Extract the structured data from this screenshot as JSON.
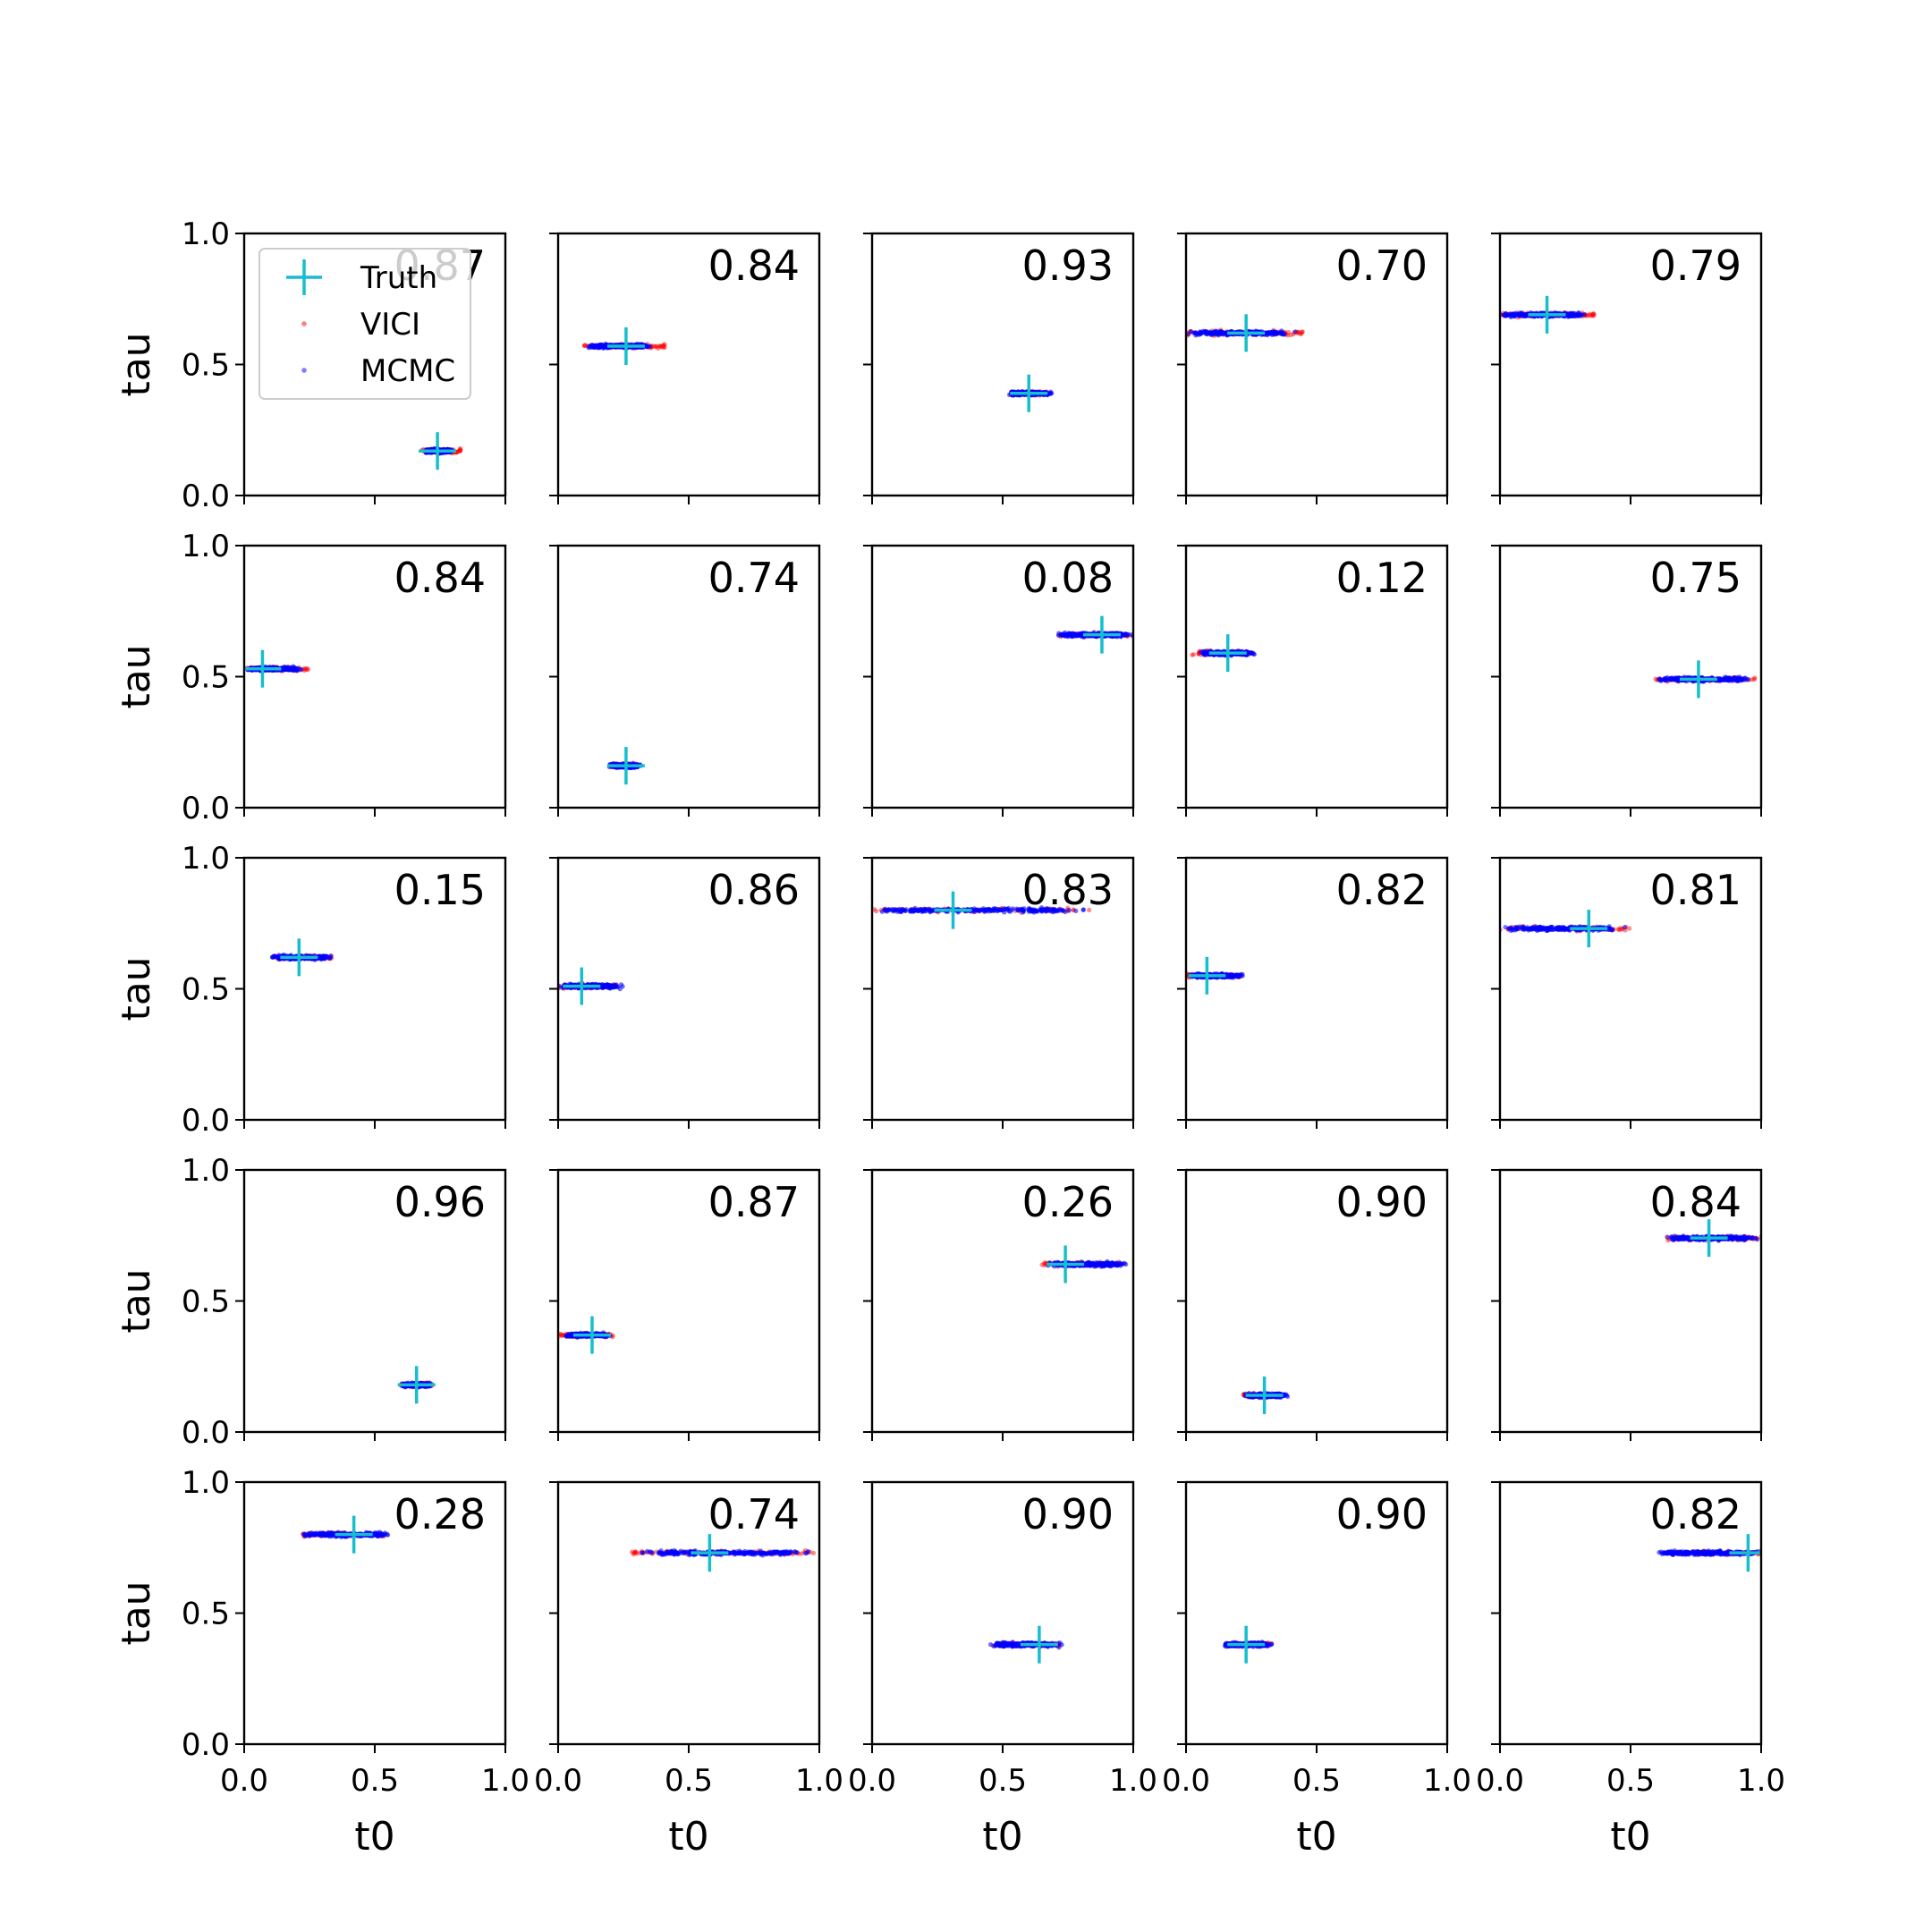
{
  "chart_data": {
    "type": "scatter",
    "layout": "5x5 grid of scatter panels",
    "xlabel": "t0",
    "ylabel": "tau",
    "xlim": [
      0,
      1
    ],
    "ylim": [
      0,
      1
    ],
    "x_ticks": [
      "0.0",
      "0.5",
      "1.0"
    ],
    "y_ticks": [
      "0.0",
      "0.5",
      "1.0"
    ],
    "grid": false,
    "legend": {
      "placement": "upper-left of first panel",
      "entries": [
        {
          "label": "Truth",
          "marker": "plus",
          "color": "#17becf"
        },
        {
          "label": "VICI",
          "marker": "dot",
          "color": "#ff0000"
        },
        {
          "label": "MCMC",
          "marker": "dot",
          "color": "#0000ff"
        }
      ]
    },
    "colors": {
      "truth": "#17becf",
      "vici": "#ff0000",
      "mcmc": "#0000ff"
    },
    "panels": [
      {
        "label": "0.87",
        "truth": [
          0.74,
          0.17
        ],
        "mcmc_t0": [
          0.69,
          0.8
        ],
        "vici_t0": [
          0.68,
          0.83
        ],
        "tau": 0.17
      },
      {
        "label": "0.84",
        "truth": [
          0.26,
          0.57
        ],
        "mcmc_t0": [
          0.1,
          0.36
        ],
        "vici_t0": [
          0.1,
          0.41
        ],
        "tau": 0.57
      },
      {
        "label": "0.93",
        "truth": [
          0.6,
          0.39
        ],
        "mcmc_t0": [
          0.52,
          0.69
        ],
        "vici_t0": [
          0.53,
          0.67
        ],
        "tau": 0.39
      },
      {
        "label": "0.70",
        "truth": [
          0.23,
          0.62
        ],
        "mcmc_t0": [
          0.0,
          0.42
        ],
        "vici_t0": [
          0.0,
          0.46
        ],
        "tau": 0.62
      },
      {
        "label": "0.79",
        "truth": [
          0.18,
          0.69
        ],
        "mcmc_t0": [
          0.0,
          0.33
        ],
        "vici_t0": [
          0.0,
          0.36
        ],
        "tau": 0.69
      },
      {
        "label": "0.84",
        "truth": [
          0.07,
          0.53
        ],
        "mcmc_t0": [
          0.0,
          0.22
        ],
        "vici_t0": [
          0.0,
          0.25
        ],
        "tau": 0.53
      },
      {
        "label": "0.74",
        "truth": [
          0.26,
          0.16
        ],
        "mcmc_t0": [
          0.19,
          0.32
        ],
        "vici_t0": [
          0.2,
          0.3
        ],
        "tau": 0.16
      },
      {
        "label": "0.08",
        "truth": [
          0.88,
          0.66
        ],
        "mcmc_t0": [
          0.7,
          1.0
        ],
        "vici_t0": [
          0.7,
          0.98
        ],
        "tau": 0.66
      },
      {
        "label": "0.12",
        "truth": [
          0.16,
          0.59
        ],
        "mcmc_t0": [
          0.05,
          0.27
        ],
        "vici_t0": [
          0.02,
          0.25
        ],
        "tau": 0.59
      },
      {
        "label": "0.75",
        "truth": [
          0.76,
          0.49
        ],
        "mcmc_t0": [
          0.6,
          0.96
        ],
        "vici_t0": [
          0.58,
          0.98
        ],
        "tau": 0.49
      },
      {
        "label": "0.15",
        "truth": [
          0.21,
          0.62
        ],
        "mcmc_t0": [
          0.1,
          0.34
        ],
        "vici_t0": [
          0.11,
          0.34
        ],
        "tau": 0.62
      },
      {
        "label": "0.86",
        "truth": [
          0.09,
          0.51
        ],
        "mcmc_t0": [
          0.0,
          0.25
        ],
        "vici_t0": [
          0.0,
          0.23
        ],
        "tau": 0.51
      },
      {
        "label": "0.83",
        "truth": [
          0.31,
          0.8
        ],
        "mcmc_t0": [
          0.0,
          0.82
        ],
        "vici_t0": [
          0.0,
          0.84
        ],
        "tau": 0.8
      },
      {
        "label": "0.82",
        "truth": [
          0.08,
          0.55
        ],
        "mcmc_t0": [
          0.0,
          0.22
        ],
        "vici_t0": [
          0.0,
          0.21
        ],
        "tau": 0.55
      },
      {
        "label": "0.81",
        "truth": [
          0.34,
          0.73
        ],
        "mcmc_t0": [
          0.0,
          0.48
        ],
        "vici_t0": [
          0.0,
          0.5
        ],
        "tau": 0.73
      },
      {
        "label": "0.96",
        "truth": [
          0.66,
          0.18
        ],
        "mcmc_t0": [
          0.6,
          0.72
        ],
        "vici_t0": [
          0.6,
          0.72
        ],
        "tau": 0.18
      },
      {
        "label": "0.87",
        "truth": [
          0.13,
          0.37
        ],
        "mcmc_t0": [
          0.02,
          0.2
        ],
        "vici_t0": [
          0.0,
          0.21
        ],
        "tau": 0.37
      },
      {
        "label": "0.26",
        "truth": [
          0.74,
          0.64
        ],
        "mcmc_t0": [
          0.66,
          0.98
        ],
        "vici_t0": [
          0.65,
          0.96
        ],
        "tau": 0.64
      },
      {
        "label": "0.90",
        "truth": [
          0.3,
          0.14
        ],
        "mcmc_t0": [
          0.22,
          0.39
        ],
        "vici_t0": [
          0.22,
          0.37
        ],
        "tau": 0.14
      },
      {
        "label": "0.84",
        "truth": [
          0.8,
          0.74
        ],
        "mcmc_t0": [
          0.63,
          1.0
        ],
        "vici_t0": [
          0.63,
          1.0
        ],
        "tau": 0.74
      },
      {
        "label": "0.28",
        "truth": [
          0.42,
          0.8
        ],
        "mcmc_t0": [
          0.22,
          0.56
        ],
        "vici_t0": [
          0.22,
          0.54
        ],
        "tau": 0.8
      },
      {
        "label": "0.74",
        "truth": [
          0.58,
          0.73
        ],
        "mcmc_t0": [
          0.3,
          0.98
        ],
        "vici_t0": [
          0.28,
          0.98
        ],
        "tau": 0.73
      },
      {
        "label": "0.90",
        "truth": [
          0.64,
          0.38
        ],
        "mcmc_t0": [
          0.45,
          0.73
        ],
        "vici_t0": [
          0.44,
          0.72
        ],
        "tau": 0.38
      },
      {
        "label": "0.90",
        "truth": [
          0.23,
          0.38
        ],
        "mcmc_t0": [
          0.14,
          0.33
        ],
        "vici_t0": [
          0.15,
          0.33
        ],
        "tau": 0.38
      },
      {
        "label": "0.82",
        "truth": [
          0.95,
          0.73
        ],
        "mcmc_t0": [
          0.58,
          1.0
        ],
        "vici_t0": [
          0.62,
          1.0
        ],
        "tau": 0.73
      }
    ]
  }
}
